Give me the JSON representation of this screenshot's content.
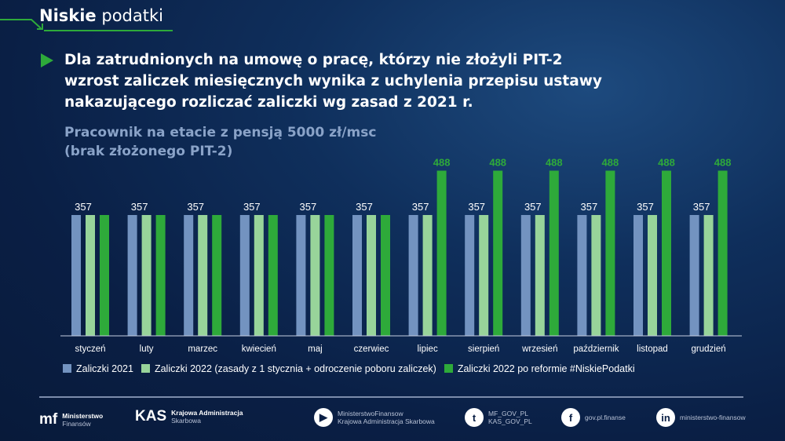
{
  "brand": {
    "bold": "Niskie",
    "light": "podatki"
  },
  "headline": [
    "Dla zatrudnionych na umowę o pracę, którzy nie złożyli PIT-2",
    "wzrost zaliczek miesięcznych wynika z uchylenia przepisu ustawy",
    "nakazującego rozliczać zaliczki wg zasad z 2021 r."
  ],
  "subtitle": [
    "Pracownik na etacie z pensją 5000 zł/msc",
    "(brak złożonego PIT-2)"
  ],
  "chart_data": {
    "type": "bar",
    "categories": [
      "styczeń",
      "luty",
      "marzec",
      "kwiecień",
      "maj",
      "czerwiec",
      "lipiec",
      "sierpień",
      "wrzesień",
      "październik",
      "listopad",
      "grudzień"
    ],
    "series": [
      {
        "name": "Zaliczki 2021",
        "color": "#7393c0",
        "values": [
          357,
          357,
          357,
          357,
          357,
          357,
          357,
          357,
          357,
          357,
          357,
          357
        ]
      },
      {
        "name": "Zaliczki 2022 (zasady z 1 stycznia + odroczenie poboru zaliczek)",
        "color": "#98d49a",
        "values": [
          357,
          357,
          357,
          357,
          357,
          357,
          357,
          357,
          357,
          357,
          357,
          357
        ]
      },
      {
        "name": "Zaliczki 2022 po reformie #NiskiePodatki",
        "color": "#2eaa3a",
        "values": [
          357,
          357,
          357,
          357,
          357,
          357,
          488,
          488,
          488,
          488,
          488,
          488
        ]
      }
    ],
    "data_labels": {
      "group_label": [
        357,
        357,
        357,
        357,
        357,
        357,
        357,
        357,
        357,
        357,
        357,
        357
      ],
      "reform_label": [
        null,
        null,
        null,
        null,
        null,
        null,
        488,
        488,
        488,
        488,
        488,
        488
      ]
    },
    "ylim": [
      0,
      490
    ],
    "grid": false,
    "legend": "bottom",
    "xlabel": "",
    "ylabel": ""
  },
  "footer": {
    "mf": [
      "Ministerstwo",
      "Finansów"
    ],
    "kas": [
      "Krajowa Administracja",
      "Skarbowa"
    ],
    "youtube": [
      "MinisterstwoFinansow",
      "Krajowa Administracja Skarbowa"
    ],
    "twitter": [
      "MF_GOV_PL",
      "KAS_GOV_PL"
    ],
    "facebook": "gov.pl.finanse",
    "linkedin": "ministerstwo-finansow"
  }
}
